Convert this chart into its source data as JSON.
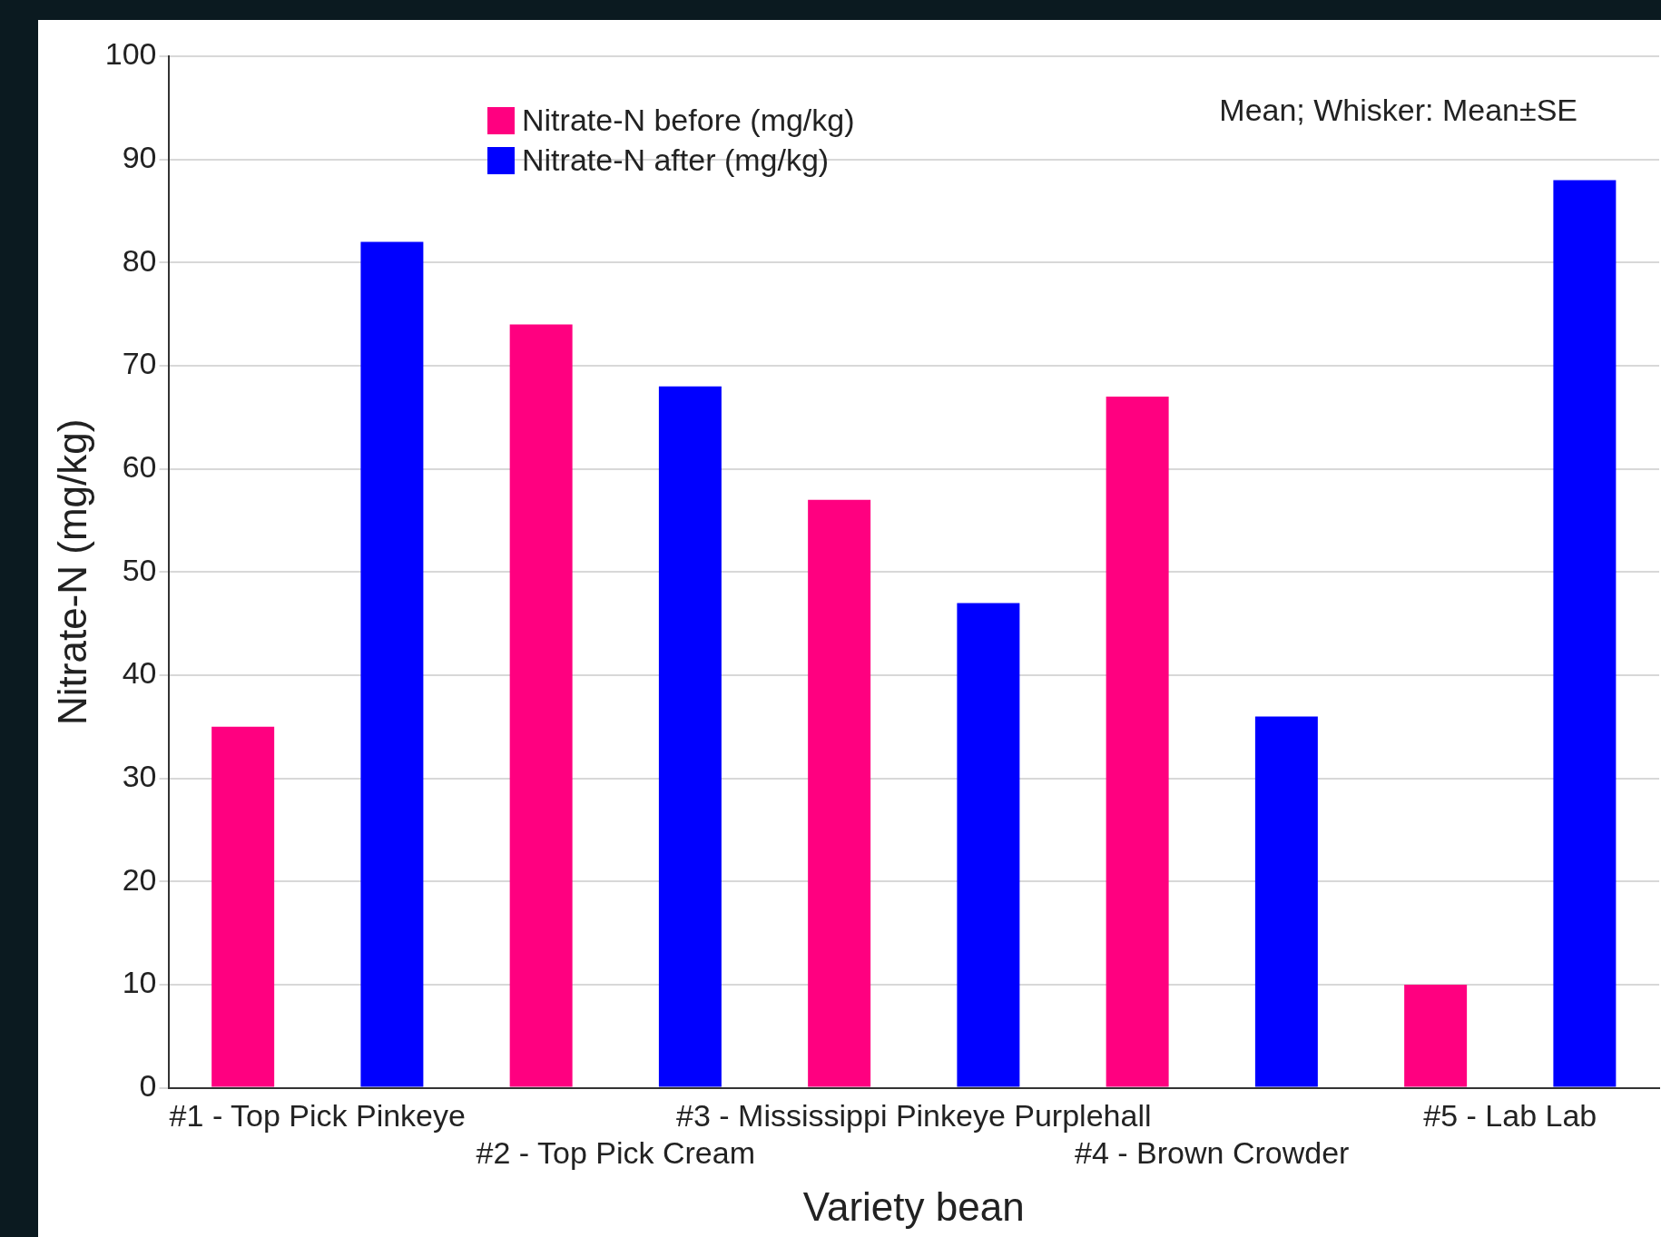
{
  "chart_data": {
    "type": "bar",
    "xlabel": "Variety bean",
    "ylabel": "Nitrate-N (mg/kg)",
    "categories": [
      "#1 - Top Pick Pinkeye",
      "#2 - Top Pick Cream",
      "#3 - Mississippi Pinkeye Purplehall",
      "#4 - Brown Crowder",
      "#5 - Lab Lab"
    ],
    "series": [
      {
        "name": "Nitrate-N before (mg/kg)",
        "color": "#ff0080",
        "values": [
          35,
          74,
          57,
          67,
          10
        ]
      },
      {
        "name": "Nitrate-N after (mg/kg)",
        "color": "#0000ff",
        "values": [
          82,
          68,
          47,
          36,
          88
        ]
      }
    ],
    "ylim": [
      0,
      100
    ],
    "yticks": [
      0,
      10,
      20,
      30,
      40,
      50,
      60,
      70,
      80,
      90,
      100
    ],
    "grid": "y",
    "legend": "top left",
    "annotations": [
      "Mean; Whisker: Mean±SE"
    ]
  }
}
